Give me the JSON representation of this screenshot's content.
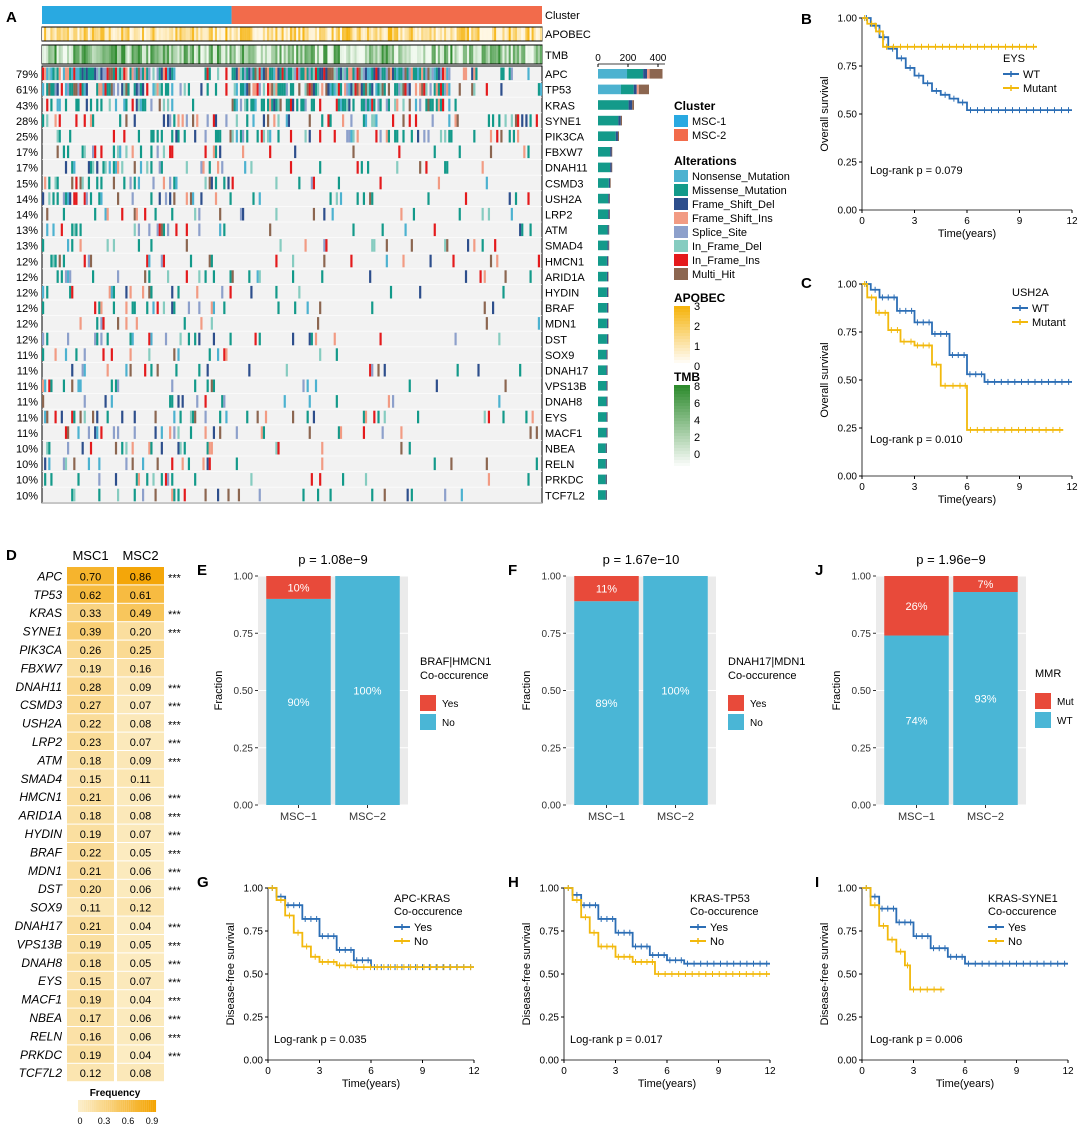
{
  "panel_letters": {
    "A": "A",
    "B": "B",
    "C": "C",
    "D": "D",
    "E": "E",
    "F": "F",
    "J": "J",
    "G": "G",
    "H": "H",
    "I": "I"
  },
  "colors": {
    "msc1": "#29A9E1",
    "msc2": "#F26B4B",
    "nonsense": "#4CB2D0",
    "missense": "#139A8A",
    "frameshift_del": "#2D4E8C",
    "frameshift_ins": "#F29B83",
    "splice": "#8DA0CB",
    "inframe_del": "#86CCC0",
    "inframe_ins": "#E41A1C",
    "multi_hit": "#8C6650",
    "bar_yes": "#E84A3A",
    "bar_no": "#4AB6D6",
    "km_wt": "#2C6EB5",
    "km_mut": "#F2B90D",
    "apobec_high": "#F6B40E",
    "tmb_high": "#2E8B2E",
    "heat_low": "#FCEFCB",
    "heat_high": "#F4A300"
  },
  "chart_data": [
    {
      "id": "A",
      "type": "heatmap",
      "title": "Oncoplot",
      "track_labels": [
        "Cluster",
        "APOBEC",
        "TMB"
      ],
      "genes": [
        "APC",
        "TP53",
        "KRAS",
        "SYNE1",
        "PIK3CA",
        "FBXW7",
        "DNAH11",
        "CSMD3",
        "USH2A",
        "LRP2",
        "ATM",
        "SMAD4",
        "HMCN1",
        "ARID1A",
        "HYDIN",
        "BRAF",
        "MDN1",
        "DST",
        "SOX9",
        "DNAH17",
        "VPS13B",
        "DNAH8",
        "EYS",
        "MACF1",
        "NBEA",
        "RELN",
        "PRKDC",
        "TCF7L2"
      ],
      "percent": [
        "79%",
        "61%",
        "43%",
        "28%",
        "25%",
        "17%",
        "17%",
        "15%",
        "14%",
        "14%",
        "13%",
        "13%",
        "12%",
        "12%",
        "12%",
        "12%",
        "12%",
        "12%",
        "11%",
        "11%",
        "11%",
        "11%",
        "11%",
        "11%",
        "10%",
        "10%",
        "10%",
        "10%"
      ],
      "freq": [
        0.79,
        0.61,
        0.43,
        0.28,
        0.25,
        0.17,
        0.17,
        0.15,
        0.14,
        0.14,
        0.13,
        0.13,
        0.12,
        0.12,
        0.12,
        0.12,
        0.12,
        0.12,
        0.11,
        0.11,
        0.11,
        0.11,
        0.11,
        0.11,
        0.1,
        0.1,
        0.1,
        0.1
      ],
      "cluster_split": 0.38,
      "bar_axis_ticks": [
        "0",
        "200",
        "400"
      ],
      "bar_counts": [
        430,
        340,
        240,
        160,
        140,
        95,
        95,
        85,
        80,
        80,
        75,
        75,
        70,
        70,
        70,
        70,
        70,
        70,
        65,
        65,
        65,
        65,
        65,
        65,
        60,
        60,
        60,
        60
      ],
      "legend": {
        "cluster_title": "Cluster",
        "cluster": [
          "MSC-1",
          "MSC-2"
        ],
        "alterations_title": "Alterations",
        "alterations": [
          "Nonsense_Mutation",
          "Missense_Mutation",
          "Frame_Shift_Del",
          "Frame_Shift_Ins",
          "Splice_Site",
          "In_Frame_Del",
          "In_Frame_Ins",
          "Multi_Hit"
        ],
        "apobec_title": "APOBEC",
        "apobec_ticks": [
          "3",
          "2",
          "1",
          "0"
        ],
        "tmb_title": "TMB",
        "tmb_ticks": [
          "8",
          "6",
          "4",
          "2",
          "0"
        ]
      }
    },
    {
      "id": "B",
      "type": "line",
      "gene": "EYS",
      "legend": [
        "WT",
        "Mutant"
      ],
      "xlabel": "Time(years)",
      "ylabel": "Overall survival",
      "pvalue": "Log-rank p = 0.079",
      "xlim": [
        0,
        12
      ],
      "ylim": [
        0,
        1
      ],
      "xticks": [
        "0",
        "3",
        "6",
        "9",
        "12"
      ],
      "yticks": [
        "0.00",
        "0.25",
        "0.50",
        "0.75",
        "1.00"
      ],
      "series": [
        {
          "name": "WT",
          "x": [
            0,
            0.5,
            1,
            1.5,
            2,
            2.5,
            3,
            3.5,
            4,
            4.5,
            5,
            5.5,
            6,
            8,
            10,
            12
          ],
          "y": [
            1,
            0.96,
            0.9,
            0.84,
            0.79,
            0.74,
            0.7,
            0.66,
            0.62,
            0.6,
            0.58,
            0.56,
            0.52,
            0.52,
            0.52,
            0.52
          ]
        },
        {
          "name": "Mutant",
          "x": [
            0,
            0.3,
            0.8,
            1.2,
            10
          ],
          "y": [
            1,
            0.97,
            0.93,
            0.85,
            0.85
          ]
        }
      ]
    },
    {
      "id": "C",
      "type": "line",
      "gene": "USH2A",
      "legend": [
        "WT",
        "Mutant"
      ],
      "xlabel": "Time(years)",
      "ylabel": "Overall survival",
      "pvalue": "Log-rank p = 0.010",
      "xlim": [
        0,
        12
      ],
      "ylim": [
        0,
        1
      ],
      "xticks": [
        "0",
        "3",
        "6",
        "9",
        "12"
      ],
      "yticks": [
        "0.00",
        "0.25",
        "0.50",
        "0.75",
        "1.00"
      ],
      "series": [
        {
          "name": "WT",
          "x": [
            0,
            0.5,
            1,
            2,
            3,
            4,
            5,
            6,
            7,
            12
          ],
          "y": [
            1,
            0.97,
            0.93,
            0.86,
            0.8,
            0.74,
            0.63,
            0.53,
            0.49,
            0.49
          ]
        },
        {
          "name": "Mutant",
          "x": [
            0,
            0.3,
            0.8,
            1.5,
            2.2,
            3,
            4,
            4.5,
            5,
            5.8,
            6,
            11.5
          ],
          "y": [
            1,
            0.93,
            0.85,
            0.76,
            0.7,
            0.68,
            0.58,
            0.47,
            0.47,
            0.47,
            0.24,
            0.24
          ]
        }
      ]
    },
    {
      "id": "D",
      "type": "heatmap",
      "columns": [
        "MSC1",
        "MSC2"
      ],
      "genes": [
        "APC",
        "TP53",
        "KRAS",
        "SYNE1",
        "PIK3CA",
        "FBXW7",
        "DNAH11",
        "CSMD3",
        "USH2A",
        "LRP2",
        "ATM",
        "SMAD4",
        "HMCN1",
        "ARID1A",
        "HYDIN",
        "BRAF",
        "MDN1",
        "DST",
        "SOX9",
        "DNAH17",
        "VPS13B",
        "DNAH8",
        "EYS",
        "MACF1",
        "NBEA",
        "RELN",
        "PRKDC",
        "TCF7L2"
      ],
      "msc1": [
        "0.70",
        "0.62",
        "0.33",
        "0.39",
        "0.26",
        "0.19",
        "0.28",
        "0.27",
        "0.22",
        "0.23",
        "0.18",
        "0.15",
        "0.21",
        "0.18",
        "0.19",
        "0.22",
        "0.21",
        "0.20",
        "0.11",
        "0.21",
        "0.19",
        "0.18",
        "0.15",
        "0.19",
        "0.17",
        "0.16",
        "0.19",
        "0.12"
      ],
      "msc2": [
        "0.86",
        "0.61",
        "0.49",
        "0.20",
        "0.25",
        "0.16",
        "0.09",
        "0.07",
        "0.08",
        "0.07",
        "0.09",
        "0.11",
        "0.06",
        "0.08",
        "0.07",
        "0.05",
        "0.06",
        "0.06",
        "0.12",
        "0.04",
        "0.05",
        "0.05",
        "0.07",
        "0.04",
        "0.06",
        "0.06",
        "0.04",
        "0.08"
      ],
      "sig": [
        "***",
        "",
        "***",
        "***",
        "",
        "",
        "***",
        "***",
        "***",
        "***",
        "***",
        "",
        "***",
        "***",
        "***",
        "***",
        "***",
        "***",
        "",
        "***",
        "***",
        "***",
        "***",
        "***",
        "***",
        "***",
        "***",
        ""
      ],
      "legend_title": "Frequency",
      "legend_ticks": [
        "0",
        "0.3",
        "0.6",
        "0.9"
      ]
    },
    {
      "id": "E",
      "type": "bar",
      "title": "p = 1.08e−9",
      "categories": [
        "MSC−1",
        "MSC−2"
      ],
      "series": [
        {
          "name": "Yes",
          "values": [
            0.1,
            0.0
          ]
        },
        {
          "name": "No",
          "values": [
            0.9,
            1.0
          ]
        }
      ],
      "labels_yes": [
        "10%",
        ""
      ],
      "labels_no": [
        "90%",
        "100%"
      ],
      "legend_title": [
        "BRAF|HMCN1",
        "Co-occurence"
      ],
      "legend": [
        "Yes",
        "No"
      ],
      "ylabel": "Fraction",
      "ylim": [
        0,
        1
      ],
      "yticks": [
        "0.00",
        "0.25",
        "0.50",
        "0.75",
        "1.00"
      ]
    },
    {
      "id": "F",
      "type": "bar",
      "title": "p = 1.67e−10",
      "categories": [
        "MSC−1",
        "MSC−2"
      ],
      "series": [
        {
          "name": "Yes",
          "values": [
            0.11,
            0.0
          ]
        },
        {
          "name": "No",
          "values": [
            0.89,
            1.0
          ]
        }
      ],
      "labels_yes": [
        "11%",
        ""
      ],
      "labels_no": [
        "89%",
        "100%"
      ],
      "legend_title": [
        "DNAH17|MDN1",
        "Co-occurence"
      ],
      "legend": [
        "Yes",
        "No"
      ],
      "ylabel": "Fraction",
      "ylim": [
        0,
        1
      ],
      "yticks": [
        "0.00",
        "0.25",
        "0.50",
        "0.75",
        "1.00"
      ]
    },
    {
      "id": "J",
      "type": "bar",
      "title": "p = 1.96e−9",
      "categories": [
        "MSC−1",
        "MSC−2"
      ],
      "series": [
        {
          "name": "Mut",
          "values": [
            0.26,
            0.07
          ]
        },
        {
          "name": "WT",
          "values": [
            0.74,
            0.93
          ]
        }
      ],
      "labels_yes": [
        "26%",
        "7%"
      ],
      "labels_no": [
        "74%",
        "93%"
      ],
      "legend_title": [
        "MMR"
      ],
      "legend": [
        "Mut",
        "WT"
      ],
      "ylabel": "Fraction",
      "ylim": [
        0,
        1
      ],
      "yticks": [
        "0.00",
        "0.25",
        "0.50",
        "0.75",
        "1.00"
      ]
    },
    {
      "id": "G",
      "type": "line",
      "legend_title": [
        "APC-KRAS",
        "Co-occurence"
      ],
      "legend": [
        "Yes",
        "No"
      ],
      "xlabel": "Time(years)",
      "ylabel": "Disease-free survival",
      "pvalue": "Log-rank p = 0.035",
      "xlim": [
        0,
        12
      ],
      "ylim": [
        0,
        1
      ],
      "xticks": [
        "0",
        "3",
        "6",
        "9",
        "12"
      ],
      "yticks": [
        "0.00",
        "0.25",
        "0.50",
        "0.75",
        "1.00"
      ],
      "series": [
        {
          "name": "Yes",
          "x": [
            0,
            0.5,
            1,
            2,
            3,
            4,
            5,
            6,
            12
          ],
          "y": [
            1,
            0.95,
            0.9,
            0.82,
            0.72,
            0.64,
            0.58,
            0.54,
            0.54
          ]
        },
        {
          "name": "No",
          "x": [
            0,
            0.5,
            1,
            1.5,
            2,
            2.5,
            3,
            4,
            5,
            12
          ],
          "y": [
            1,
            0.93,
            0.84,
            0.74,
            0.66,
            0.6,
            0.57,
            0.55,
            0.54,
            0.54
          ]
        }
      ]
    },
    {
      "id": "H",
      "type": "line",
      "legend_title": [
        "KRAS-TP53",
        "Co-occurence"
      ],
      "legend": [
        "Yes",
        "No"
      ],
      "xlabel": "Time(years)",
      "ylabel": "Disease-free survival",
      "pvalue": "Log-rank p = 0.017",
      "xlim": [
        0,
        12
      ],
      "ylim": [
        0,
        1
      ],
      "xticks": [
        "0",
        "3",
        "6",
        "9",
        "12"
      ],
      "yticks": [
        "0.00",
        "0.25",
        "0.50",
        "0.75",
        "1.00"
      ],
      "series": [
        {
          "name": "Yes",
          "x": [
            0,
            0.5,
            1,
            2,
            3,
            4,
            5,
            6,
            7,
            12
          ],
          "y": [
            1,
            0.96,
            0.9,
            0.82,
            0.74,
            0.66,
            0.61,
            0.58,
            0.56,
            0.56
          ]
        },
        {
          "name": "No",
          "x": [
            0,
            0.5,
            1,
            1.5,
            2,
            3,
            4,
            5,
            5.3,
            12
          ],
          "y": [
            1,
            0.93,
            0.83,
            0.74,
            0.66,
            0.6,
            0.57,
            0.57,
            0.5,
            0.5
          ]
        }
      ]
    },
    {
      "id": "I",
      "type": "line",
      "legend_title": [
        "KRAS-SYNE1",
        "Co-occurence"
      ],
      "legend": [
        "Yes",
        "No"
      ],
      "xlabel": "Time(years)",
      "ylabel": "Disease-free survival",
      "pvalue": "Log-rank p = 0.006",
      "xlim": [
        0,
        12
      ],
      "ylim": [
        0,
        1
      ],
      "xticks": [
        "0",
        "3",
        "6",
        "9",
        "12"
      ],
      "yticks": [
        "0.00",
        "0.25",
        "0.50",
        "0.75",
        "1.00"
      ],
      "series": [
        {
          "name": "Yes",
          "x": [
            0,
            0.5,
            1,
            2,
            3,
            4,
            5,
            6,
            12
          ],
          "y": [
            1,
            0.95,
            0.88,
            0.8,
            0.72,
            0.65,
            0.6,
            0.56,
            0.56
          ]
        },
        {
          "name": "No",
          "x": [
            0,
            0.5,
            1,
            1.5,
            2,
            2.5,
            2.8,
            4.8
          ],
          "y": [
            1,
            0.9,
            0.78,
            0.7,
            0.63,
            0.55,
            0.41,
            0.41
          ]
        }
      ]
    }
  ]
}
